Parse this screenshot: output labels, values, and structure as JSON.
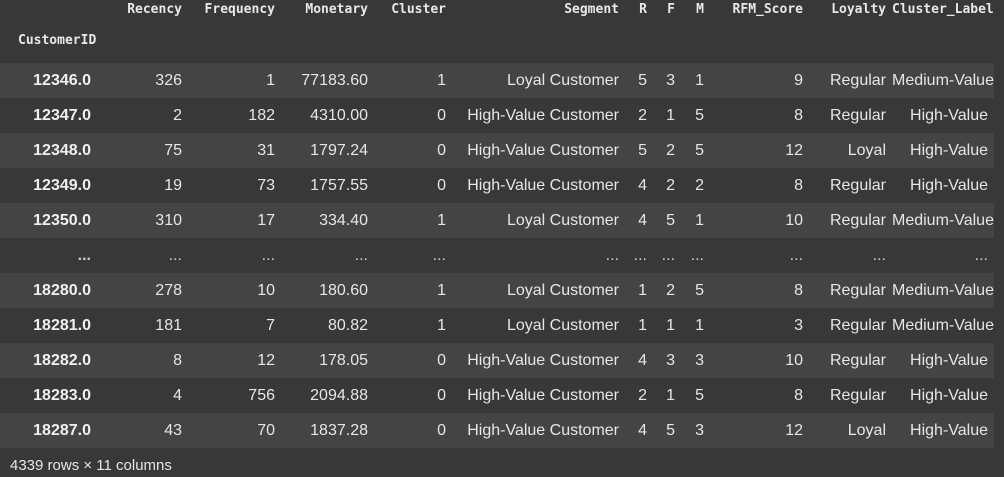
{
  "table": {
    "index_name": "CustomerID",
    "columns": [
      "Recency",
      "Frequency",
      "Monetary",
      "Cluster",
      "Segment",
      "R",
      "F",
      "M",
      "RFM_Score",
      "Loyalty",
      "Cluster_Label"
    ],
    "rows": [
      {
        "id": "12346.0",
        "cells": [
          "326",
          "1",
          "77183.60",
          "1",
          "Loyal Customer",
          "5",
          "3",
          "1",
          "9",
          "Regular",
          "Medium-Value"
        ]
      },
      {
        "id": "12347.0",
        "cells": [
          "2",
          "182",
          "4310.00",
          "0",
          "High-Value Customer",
          "2",
          "1",
          "5",
          "8",
          "Regular",
          "High-Value"
        ]
      },
      {
        "id": "12348.0",
        "cells": [
          "75",
          "31",
          "1797.24",
          "0",
          "High-Value Customer",
          "5",
          "2",
          "5",
          "12",
          "Loyal",
          "High-Value"
        ]
      },
      {
        "id": "12349.0",
        "cells": [
          "19",
          "73",
          "1757.55",
          "0",
          "High-Value Customer",
          "4",
          "2",
          "2",
          "8",
          "Regular",
          "High-Value"
        ]
      },
      {
        "id": "12350.0",
        "cells": [
          "310",
          "17",
          "334.40",
          "1",
          "Loyal Customer",
          "4",
          "5",
          "1",
          "10",
          "Regular",
          "Medium-Value"
        ]
      },
      {
        "id": "...",
        "cells": [
          "...",
          "...",
          "...",
          "...",
          "...",
          "...",
          "...",
          "...",
          "...",
          "...",
          "..."
        ]
      },
      {
        "id": "18280.0",
        "cells": [
          "278",
          "10",
          "180.60",
          "1",
          "Loyal Customer",
          "1",
          "2",
          "5",
          "8",
          "Regular",
          "Medium-Value"
        ]
      },
      {
        "id": "18281.0",
        "cells": [
          "181",
          "7",
          "80.82",
          "1",
          "Loyal Customer",
          "1",
          "1",
          "1",
          "3",
          "Regular",
          "Medium-Value"
        ]
      },
      {
        "id": "18282.0",
        "cells": [
          "8",
          "12",
          "178.05",
          "0",
          "High-Value Customer",
          "4",
          "3",
          "3",
          "10",
          "Regular",
          "High-Value"
        ]
      },
      {
        "id": "18283.0",
        "cells": [
          "4",
          "756",
          "2094.88",
          "0",
          "High-Value Customer",
          "2",
          "1",
          "5",
          "8",
          "Regular",
          "High-Value"
        ]
      },
      {
        "id": "18287.0",
        "cells": [
          "43",
          "70",
          "1837.28",
          "0",
          "High-Value Customer",
          "4",
          "5",
          "3",
          "12",
          "Loyal",
          "High-Value"
        ]
      }
    ]
  },
  "footer": {
    "shape_text": "4339 rows × 11 columns"
  },
  "colors": {
    "background": "#383838",
    "row_stripe": "#444444",
    "text": "#e6e6e6"
  }
}
